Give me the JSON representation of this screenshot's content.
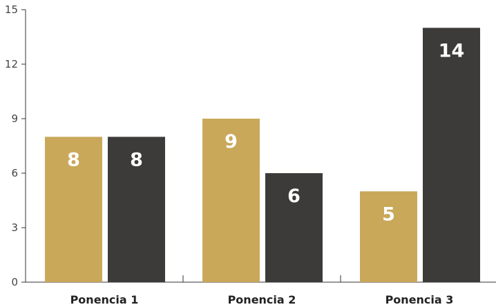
{
  "chart_data": {
    "type": "bar",
    "categories": [
      "Ponencia 1",
      "Ponencia 2",
      "Ponencia 3"
    ],
    "series": [
      {
        "values": [
          8,
          9,
          5
        ],
        "color": "#c9a85a"
      },
      {
        "values": [
          8,
          6,
          14
        ],
        "color": "#3c3b3a"
      }
    ],
    "ylim": [
      0,
      15
    ],
    "yticks": [
      0,
      3,
      6,
      9,
      12,
      15
    ],
    "title": "",
    "xlabel": "",
    "ylabel": "",
    "grid": false,
    "data_labels": true
  }
}
